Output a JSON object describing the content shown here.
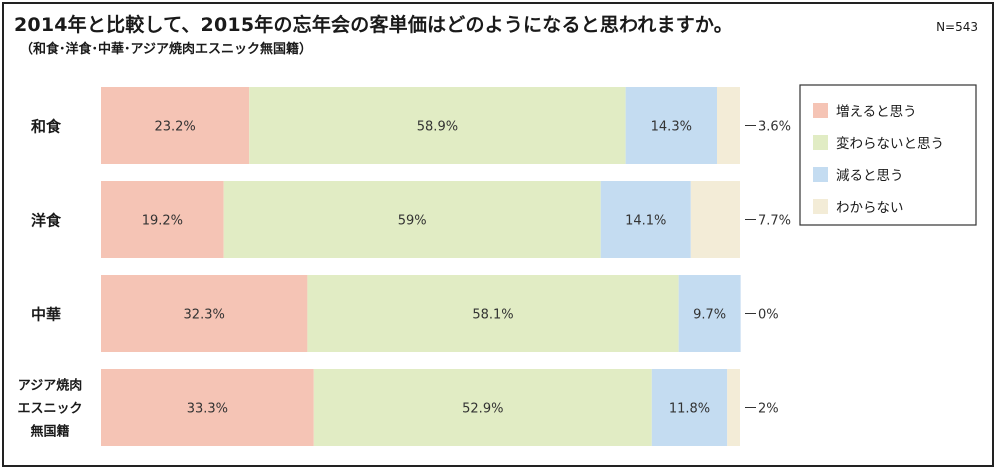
{
  "title": "2014年と比較して、2015年の忘年会の客単価はどのようになると思われますか。",
  "subtitle": "（和食･洋食･中華･アジア焼肉エスニック無国籍）",
  "n_label": "N=543",
  "colors": {
    "increase": "#f5c4b5",
    "same": "#e1ecc4",
    "decrease": "#c4dcf1",
    "unknown": "#f3ecd7"
  },
  "chart_data": {
    "type": "bar",
    "orientation": "horizontal",
    "stacked": true,
    "categories": [
      "和食",
      "洋食",
      "中華",
      "アジア焼肉エスニック無国籍"
    ],
    "category_lines": [
      [
        "和食"
      ],
      [
        "洋食"
      ],
      [
        "中華"
      ],
      [
        "アジア焼肉",
        "エスニック",
        "無国籍"
      ]
    ],
    "series": [
      {
        "name": "増えると思う",
        "color_key": "increase",
        "values": [
          23.2,
          19.2,
          32.3,
          33.3
        ],
        "labels": [
          "23.2%",
          "19.2%",
          "32.3%",
          "33.3%"
        ]
      },
      {
        "name": "変わらないと思う",
        "color_key": "same",
        "values": [
          58.9,
          59,
          58.1,
          52.9
        ],
        "labels": [
          "58.9%",
          "59%",
          "58.1%",
          "52.9%"
        ]
      },
      {
        "name": "減ると思う",
        "color_key": "decrease",
        "values": [
          14.3,
          14.1,
          9.7,
          11.8
        ],
        "labels": [
          "14.3%",
          "14.1%",
          "9.7%",
          "11.8%"
        ]
      },
      {
        "name": "わからない",
        "color_key": "unknown",
        "values": [
          3.6,
          7.7,
          0,
          2
        ],
        "labels": [
          "3.6%",
          "7.7%",
          "0%",
          "2%"
        ]
      }
    ],
    "xlim": [
      0,
      100
    ],
    "legend_position": "right",
    "grid": false
  }
}
